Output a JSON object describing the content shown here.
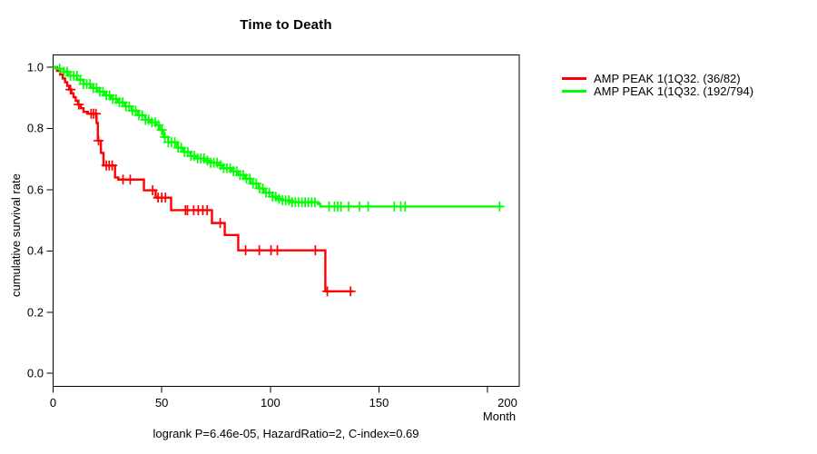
{
  "chart_data": {
    "type": "line",
    "subtype": "kaplan-meier-step-survival",
    "title": "Time to Death",
    "xlabel": "Month",
    "ylabel": "cumulative survival rate",
    "caption": "logrank P=6.46e-05, HazardRatio=2, C-index=0.69",
    "xlim": [
      0,
      215
    ],
    "ylim": [
      0,
      1.04
    ],
    "x_tick_values": [
      0,
      50,
      100,
      150,
      200
    ],
    "x_tick_labels": [
      "0",
      "50",
      "100",
      "150",
      "200"
    ],
    "y_tick_values": [
      0.0,
      0.2,
      0.4,
      0.6,
      0.8,
      1.0
    ],
    "y_tick_labels": [
      "0.0",
      "0.2",
      "0.4",
      "0.6",
      "0.8",
      "1.0"
    ],
    "grid": false,
    "legend_position": "right-outside",
    "stats": {
      "logrank_p": "6.46e-05",
      "hazard_ratio": "2",
      "c_index": "0.69"
    },
    "series": [
      {
        "name": "AMP PEAK 1(1Q32. (36/82)",
        "color": "#ff0000",
        "events": "36/82",
        "end_month": 138,
        "steps": [
          [
            0,
            1
          ],
          [
            1.8,
            0.988
          ],
          [
            3.2,
            0.976
          ],
          [
            4.4,
            0.963
          ],
          [
            5.5,
            0.951
          ],
          [
            6.5,
            0.939
          ],
          [
            7.4,
            0.927
          ],
          [
            8.4,
            0.915
          ],
          [
            9.4,
            0.902
          ],
          [
            10.4,
            0.89
          ],
          [
            11.5,
            0.878
          ],
          [
            12.7,
            0.866
          ],
          [
            14,
            0.854
          ],
          [
            16,
            0.848
          ],
          [
            20,
            0.818
          ],
          [
            20.6,
            0.76
          ],
          [
            22,
            0.72
          ],
          [
            23.2,
            0.679
          ],
          [
            28.5,
            0.64
          ],
          [
            30,
            0.633
          ],
          [
            41.8,
            0.598
          ],
          [
            47.2,
            0.574
          ],
          [
            54.3,
            0.533
          ],
          [
            73.1,
            0.491
          ],
          [
            79,
            0.452
          ],
          [
            85.2,
            0.402
          ],
          [
            125.3,
            0.268
          ]
        ],
        "censor_months": [
          8,
          11.8,
          17.5,
          18.6,
          19.7,
          20.9,
          24.5,
          25.8,
          27.2,
          32.2,
          35.5,
          45.8,
          48.3,
          50,
          51.7,
          60.9,
          61.8,
          64.7,
          66.8,
          68.9,
          70.9,
          76.9,
          88.6,
          94.9,
          100.3,
          103.2,
          120.7,
          126.2,
          136.9
        ]
      },
      {
        "name": "AMP PEAK 1(1Q32. (192/794)",
        "color": "#00ff00",
        "events": "192/794",
        "end_month": 206.5,
        "steps": [
          [
            0,
            1
          ],
          [
            1.5,
            0.995
          ],
          [
            4.8,
            0.985
          ],
          [
            7,
            0.972
          ],
          [
            11.1,
            0.959
          ],
          [
            14,
            0.945
          ],
          [
            17.4,
            0.932
          ],
          [
            20.5,
            0.92
          ],
          [
            23.6,
            0.908
          ],
          [
            26.7,
            0.896
          ],
          [
            29.9,
            0.885
          ],
          [
            33,
            0.872
          ],
          [
            36.2,
            0.858
          ],
          [
            39,
            0.843
          ],
          [
            42.4,
            0.828
          ],
          [
            45,
            0.82
          ],
          [
            47.4,
            0.811
          ],
          [
            49,
            0.795
          ],
          [
            50.8,
            0.772
          ],
          [
            53,
            0.755
          ],
          [
            57,
            0.737
          ],
          [
            60,
            0.723
          ],
          [
            63.3,
            0.71
          ],
          [
            66,
            0.702
          ],
          [
            69.6,
            0.695
          ],
          [
            72,
            0.688
          ],
          [
            75.9,
            0.68
          ],
          [
            78,
            0.67
          ],
          [
            82.1,
            0.66
          ],
          [
            85,
            0.648
          ],
          [
            88.4,
            0.636
          ],
          [
            91,
            0.62
          ],
          [
            94.6,
            0.604
          ],
          [
            97,
            0.59
          ],
          [
            100.9,
            0.577
          ],
          [
            103,
            0.57
          ],
          [
            105.1,
            0.565
          ],
          [
            109.3,
            0.559
          ],
          [
            121.8,
            0.553
          ],
          [
            123,
            0.545
          ]
        ],
        "censor_months": [
          3,
          5,
          6.5,
          8,
          9.5,
          11,
          12.5,
          14,
          15.5,
          17,
          18.5,
          20,
          21.5,
          23,
          24.5,
          26,
          27.5,
          29,
          30.5,
          32,
          33.5,
          35,
          36.5,
          38,
          39.5,
          41,
          42.5,
          44,
          45.5,
          47,
          48.5,
          50,
          51.5,
          53,
          54.5,
          56,
          57.5,
          59,
          60.5,
          62,
          63.5,
          65,
          66.5,
          68,
          69.5,
          71,
          72.5,
          74,
          75.5,
          77,
          78.5,
          80,
          81.5,
          83,
          84.5,
          86,
          87.5,
          89,
          90.5,
          92,
          93.5,
          95,
          96.5,
          98,
          99.5,
          101,
          102.5,
          104,
          105.5,
          107,
          108.5,
          110,
          111.5,
          113,
          114.5,
          116,
          117.5,
          119,
          120.5,
          127,
          129.5,
          131,
          132.5,
          136,
          141,
          145,
          157,
          160,
          162,
          205.5
        ]
      }
    ]
  }
}
